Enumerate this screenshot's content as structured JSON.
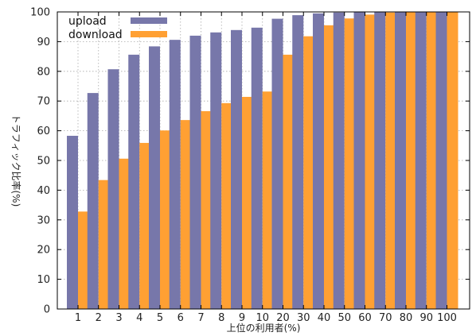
{
  "chart_data": {
    "type": "bar",
    "xlabel": "上位の利用者(%)",
    "ylabel": "トラフィック比率(%)",
    "categories": [
      "1",
      "2",
      "3",
      "4",
      "5",
      "6",
      "7",
      "8",
      "9",
      "10",
      "20",
      "30",
      "40",
      "50",
      "60",
      "70",
      "80",
      "90",
      "100"
    ],
    "ylim": [
      0,
      100
    ],
    "yticks": [
      0,
      10,
      20,
      30,
      40,
      50,
      60,
      70,
      80,
      90,
      100
    ],
    "grid": true,
    "legend_position": "top-left",
    "series": [
      {
        "name": "upload",
        "color": "#7777aa",
        "values": [
          58.3,
          72.7,
          80.7,
          85.6,
          88.4,
          90.6,
          92.0,
          93.1,
          93.9,
          94.7,
          97.7,
          98.9,
          99.5,
          99.8,
          100,
          100,
          100,
          100,
          100
        ]
      },
      {
        "name": "download",
        "color": "#ffa033",
        "values": [
          32.8,
          43.4,
          50.6,
          55.9,
          60.1,
          63.6,
          66.6,
          69.3,
          71.4,
          73.2,
          85.6,
          91.8,
          95.5,
          97.8,
          99.1,
          99.8,
          100,
          100,
          100
        ]
      }
    ]
  }
}
